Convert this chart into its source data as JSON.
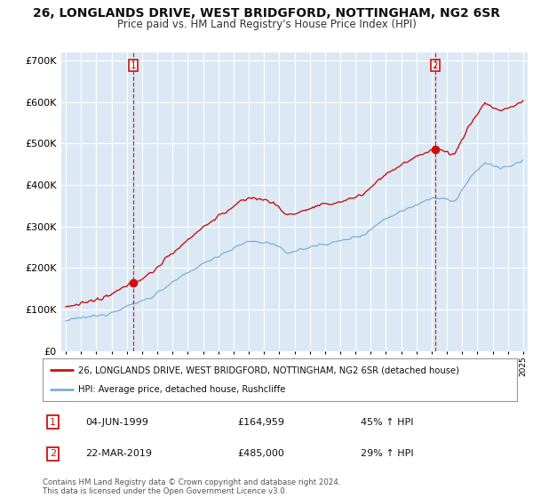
{
  "title_line1": "26, LONGLANDS DRIVE, WEST BRIDGFORD, NOTTINGHAM, NG2 6SR",
  "title_line2": "Price paid vs. HM Land Registry's House Price Index (HPI)",
  "ylim": [
    0,
    720000
  ],
  "yticks": [
    0,
    100000,
    200000,
    300000,
    400000,
    500000,
    600000,
    700000
  ],
  "ytick_labels": [
    "£0",
    "£100K",
    "£200K",
    "£300K",
    "£400K",
    "£500K",
    "£600K",
    "£700K"
  ],
  "sale1_date": 1999.43,
  "sale1_price": 164959,
  "sale2_date": 2019.22,
  "sale2_price": 485000,
  "hpi_color": "#7bafd4",
  "price_color": "#cc1111",
  "legend_label1": "26, LONGLANDS DRIVE, WEST BRIDGFORD, NOTTINGHAM, NG2 6SR (detached house)",
  "legend_label2": "HPI: Average price, detached house, Rushcliffe",
  "table_row1": [
    "1",
    "04-JUN-1999",
    "£164,959",
    "45% ↑ HPI"
  ],
  "table_row2": [
    "2",
    "22-MAR-2019",
    "£485,000",
    "29% ↑ HPI"
  ],
  "footnote": "Contains HM Land Registry data © Crown copyright and database right 2024.\nThis data is licensed under the Open Government Licence v3.0.",
  "bg_color": "#ffffff",
  "plot_bg_color": "#dce9f5",
  "grid_color": "#ffffff"
}
